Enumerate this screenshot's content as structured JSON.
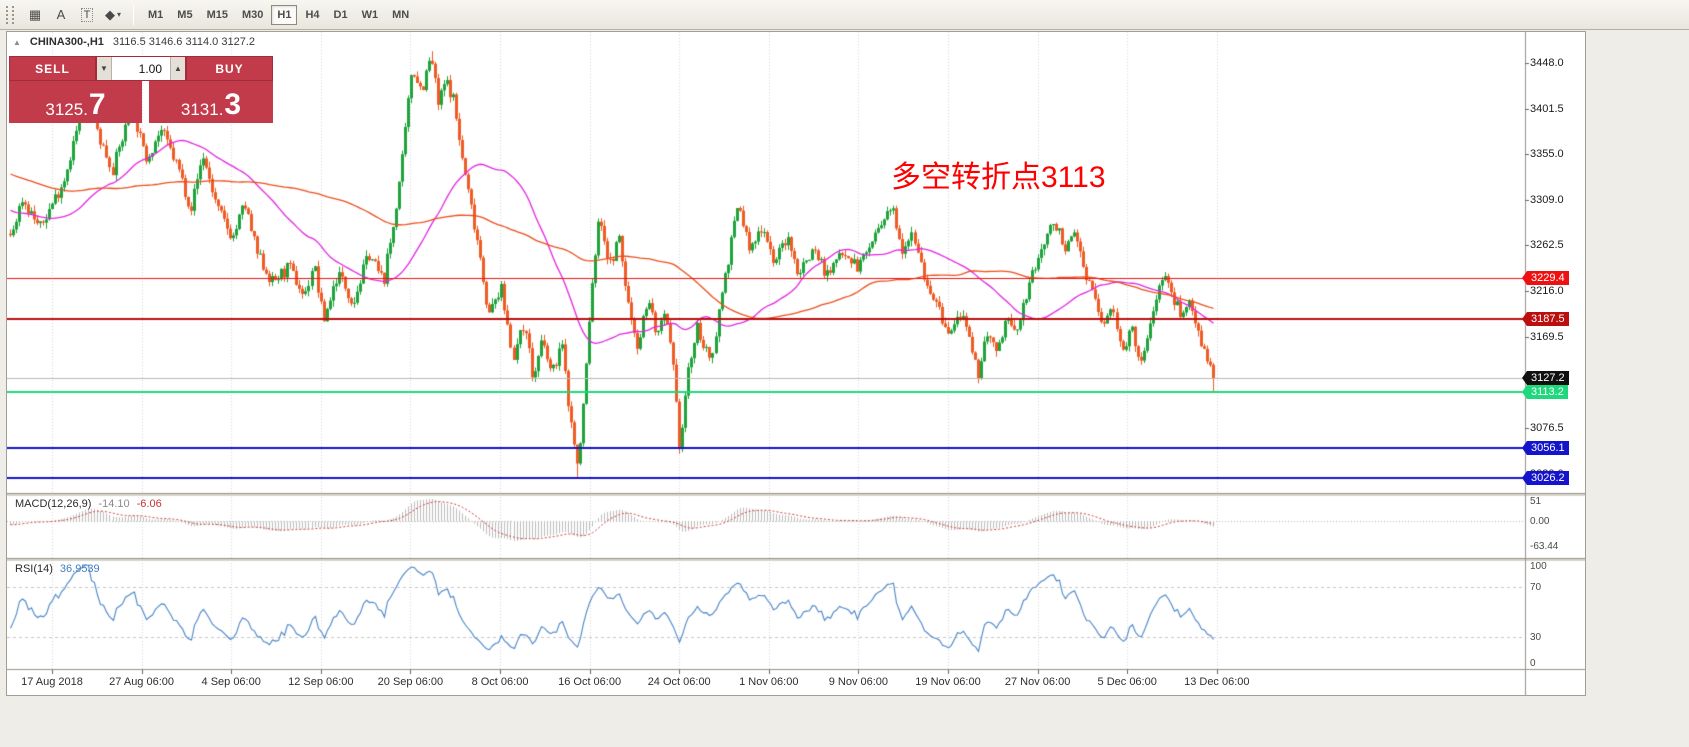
{
  "toolbar": {
    "tool_icons": {
      "grid": "▦",
      "label_a": "A",
      "label_t": "T",
      "shapes": "◆",
      "caret": "▾"
    },
    "timeframes": [
      "M1",
      "M5",
      "M15",
      "M30",
      "H1",
      "H4",
      "D1",
      "W1",
      "MN"
    ],
    "active_timeframe": "H1"
  },
  "chart": {
    "title": "CHINA300-,H1",
    "ohlc": "3116.5 3146.6 3114.0 3127.2",
    "collapse_arrow": "▲",
    "annotation": "多空转折点3113",
    "annotation_color": "#ff0000",
    "price_axis_labels": [
      "3448.0",
      "3401.5",
      "3355.0",
      "3309.0",
      "3262.5",
      "3216.0",
      "3169.5",
      "3076.5",
      "3030.0"
    ],
    "price_lines": [
      {
        "price": 3229.4,
        "label": "3229.4",
        "color": "#ee1111",
        "width": 1
      },
      {
        "price": 3187.5,
        "label": "3187.5",
        "color": "#bb0f0f",
        "width": 2
      },
      {
        "price": 3127.2,
        "label": "3127.2",
        "color": "#b9b9b9",
        "tag_bg": "#101010",
        "width": 1
      },
      {
        "price": 3113.2,
        "label": "3113.2",
        "color": "#1fd87c",
        "width": 2
      },
      {
        "price": 3056.1,
        "label": "3056.1",
        "color": "#1414cc",
        "width": 2
      },
      {
        "price": 3026.2,
        "label": "3026.2",
        "color": "#1414cc",
        "width": 2
      }
    ],
    "dates": [
      "17 Aug 2018",
      "27 Aug 06:00",
      "4 Sep 06:00",
      "12 Sep 06:00",
      "20 Sep 06:00",
      "8 Oct 06:00",
      "16 Oct 06:00",
      "24 Oct 06:00",
      "1 Nov 06:00",
      "9 Nov 06:00",
      "19 Nov 06:00",
      "27 Nov 06:00",
      "5 Dec 06:00",
      "13 Dec 06:00"
    ]
  },
  "trade_panel": {
    "sell_label": "SELL",
    "buy_label": "BUY",
    "volume": "1.00",
    "spin_down": "▼",
    "spin_up": "▲",
    "sell_price_main": "3125.",
    "sell_price_big": "7",
    "buy_price_main": "3131.",
    "buy_price_big": "3",
    "panel_color": "#c23b4b"
  },
  "macd": {
    "label": "MACD(12,26,9)",
    "value_main": "-14.10",
    "value_signal": "-6.06",
    "axis_labels": [
      {
        "text": "51",
        "v": 51
      },
      {
        "text": "0.00",
        "v": 0
      },
      {
        "text": "-63.44",
        "v": -63.44
      }
    ]
  },
  "rsi": {
    "label": "RSI(14)",
    "value": "36.9539",
    "axis_labels": [
      {
        "text": "100",
        "v": 100
      },
      {
        "text": "70",
        "v": 70
      },
      {
        "text": "30",
        "v": 30
      },
      {
        "text": "0",
        "v": 0
      }
    ],
    "levels": [
      70,
      30
    ]
  },
  "chart_data": {
    "type": "candlestick",
    "symbol": "CHINA300-",
    "timeframe": "H1",
    "visible_bars": 400,
    "warmup_bars": 110,
    "warmup_from": 3420,
    "seed": 7,
    "noise": 7,
    "y_axis": {
      "top_price": 3448.0,
      "bottom_price": 3030.0
    },
    "ma_fast_period": 40,
    "ma_slow_period": 95,
    "colors": {
      "up": "#1fa33c",
      "down": "#ef5b25",
      "ma_fast": "#e128e1",
      "ma_slow": "#ea4f1e",
      "macd_hist": "#bdbdbd",
      "macd_signal": "#d23f3f",
      "rsi_line": "#4a86c8",
      "grid": "#d9d9d9"
    },
    "price_path": [
      [
        0.0,
        3270
      ],
      [
        0.01,
        3310
      ],
      [
        0.025,
        3280
      ],
      [
        0.045,
        3330
      ],
      [
        0.064,
        3420
      ],
      [
        0.075,
        3370
      ],
      [
        0.085,
        3340
      ],
      [
        0.101,
        3405
      ],
      [
        0.112,
        3350
      ],
      [
        0.125,
        3380
      ],
      [
        0.14,
        3340
      ],
      [
        0.15,
        3300
      ],
      [
        0.16,
        3355
      ],
      [
        0.172,
        3300
      ],
      [
        0.185,
        3270
      ],
      [
        0.195,
        3305
      ],
      [
        0.205,
        3255
      ],
      [
        0.218,
        3225
      ],
      [
        0.232,
        3240
      ],
      [
        0.245,
        3210
      ],
      [
        0.252,
        3245
      ],
      [
        0.26,
        3185
      ],
      [
        0.272,
        3235
      ],
      [
        0.285,
        3205
      ],
      [
        0.298,
        3255
      ],
      [
        0.31,
        3225
      ],
      [
        0.318,
        3280
      ],
      [
        0.326,
        3350
      ],
      [
        0.334,
        3445
      ],
      [
        0.342,
        3420
      ],
      [
        0.35,
        3455
      ],
      [
        0.356,
        3405
      ],
      [
        0.362,
        3430
      ],
      [
        0.368,
        3415
      ],
      [
        0.376,
        3350
      ],
      [
        0.382,
        3310
      ],
      [
        0.39,
        3260
      ],
      [
        0.398,
        3190
      ],
      [
        0.408,
        3220
      ],
      [
        0.418,
        3150
      ],
      [
        0.428,
        3185
      ],
      [
        0.434,
        3125
      ],
      [
        0.442,
        3165
      ],
      [
        0.45,
        3130
      ],
      [
        0.458,
        3165
      ],
      [
        0.464,
        3100
      ],
      [
        0.472,
        3032
      ],
      [
        0.478,
        3130
      ],
      [
        0.484,
        3230
      ],
      [
        0.49,
        3295
      ],
      [
        0.498,
        3240
      ],
      [
        0.506,
        3270
      ],
      [
        0.514,
        3200
      ],
      [
        0.522,
        3160
      ],
      [
        0.53,
        3210
      ],
      [
        0.538,
        3170
      ],
      [
        0.545,
        3190
      ],
      [
        0.551,
        3140
      ],
      [
        0.557,
        3052
      ],
      [
        0.563,
        3130
      ],
      [
        0.572,
        3180
      ],
      [
        0.582,
        3140
      ],
      [
        0.592,
        3220
      ],
      [
        0.605,
        3305
      ],
      [
        0.615,
        3255
      ],
      [
        0.625,
        3285
      ],
      [
        0.635,
        3245
      ],
      [
        0.645,
        3270
      ],
      [
        0.655,
        3235
      ],
      [
        0.668,
        3260
      ],
      [
        0.68,
        3230
      ],
      [
        0.692,
        3260
      ],
      [
        0.705,
        3240
      ],
      [
        0.718,
        3270
      ],
      [
        0.734,
        3300
      ],
      [
        0.742,
        3260
      ],
      [
        0.75,
        3280
      ],
      [
        0.76,
        3230
      ],
      [
        0.77,
        3200
      ],
      [
        0.78,
        3170
      ],
      [
        0.79,
        3195
      ],
      [
        0.804,
        3130
      ],
      [
        0.812,
        3175
      ],
      [
        0.82,
        3150
      ],
      [
        0.828,
        3190
      ],
      [
        0.836,
        3170
      ],
      [
        0.844,
        3210
      ],
      [
        0.852,
        3240
      ],
      [
        0.862,
        3275
      ],
      [
        0.871,
        3285
      ],
      [
        0.878,
        3255
      ],
      [
        0.885,
        3275
      ],
      [
        0.893,
        3240
      ],
      [
        0.9,
        3215
      ],
      [
        0.908,
        3180
      ],
      [
        0.916,
        3200
      ],
      [
        0.924,
        3160
      ],
      [
        0.932,
        3175
      ],
      [
        0.938,
        3140
      ],
      [
        0.945,
        3165
      ],
      [
        0.95,
        3200
      ],
      [
        0.958,
        3235
      ],
      [
        0.964,
        3215
      ],
      [
        0.972,
        3195
      ],
      [
        0.98,
        3205
      ],
      [
        0.988,
        3175
      ],
      [
        0.994,
        3150
      ],
      [
        1.0,
        3127
      ]
    ]
  }
}
